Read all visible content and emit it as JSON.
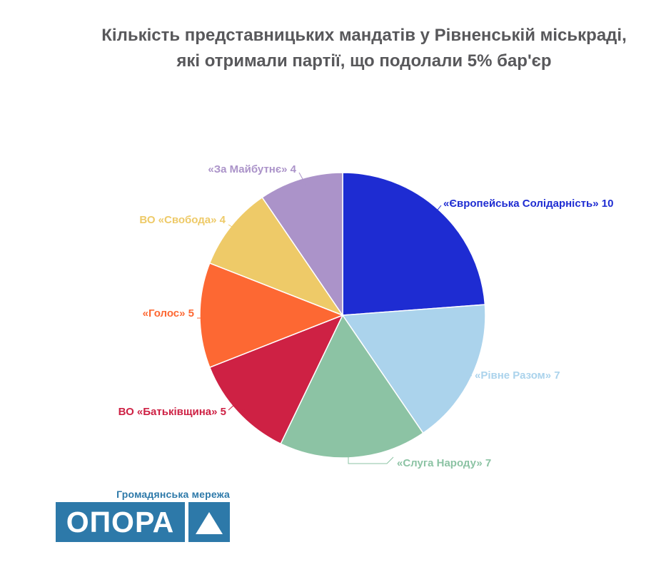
{
  "title": {
    "line1": "Кількість представницьких мандатів у Рівненській міськраді,",
    "line2": "які отримали партії, що подолали 5% бар'єр"
  },
  "chart_data": {
    "type": "pie",
    "title": "Кількість представницьких мандатів у Рівненській міськраді, які отримали партії, що подолали 5% бар'єр",
    "total": 42,
    "start_angle_deg": 0,
    "direction": "clockwise",
    "legend_position": "outside-labels",
    "series": [
      {
        "name": "«Європейська Солідарність»",
        "value": 10,
        "color": "#1e2cd2"
      },
      {
        "name": "«Рівне Разом»",
        "value": 7,
        "color": "#abd3ec"
      },
      {
        "name": "«Слуга Народу»",
        "value": 7,
        "color": "#8cc3a4"
      },
      {
        "name": "ВО «Батьківщина»",
        "value": 5,
        "color": "#ce2144"
      },
      {
        "name": "«Голос»",
        "value": 5,
        "color": "#fd6833"
      },
      {
        "name": "ВО «Свобода»",
        "value": 4,
        "color": "#eeca68"
      },
      {
        "name": "«За Майбутнє»",
        "value": 4,
        "color": "#ab93c9"
      }
    ]
  },
  "theme": {
    "title_color": "#58585b",
    "background": "#ffffff"
  },
  "logo": {
    "network_label": "Громадянська мережа",
    "brand": "ОПОРА",
    "color": "#2d79a9"
  }
}
